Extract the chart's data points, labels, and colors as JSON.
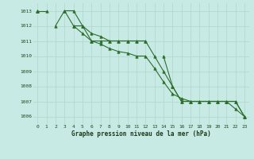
{
  "title": "Graphe pression niveau de la mer (hPa)",
  "bg_color": "#c8eae4",
  "grid_color": "#b0d4cc",
  "line_color": "#2d6e2d",
  "x": [
    0,
    1,
    2,
    3,
    4,
    5,
    6,
    7,
    8,
    9,
    10,
    11,
    12,
    13,
    14,
    15,
    16,
    17,
    18,
    19,
    20,
    21,
    22,
    23
  ],
  "line1": [
    1013.0,
    1013.0,
    null,
    1013.0,
    1013.0,
    1012.0,
    1011.0,
    1011.0,
    1011.0,
    1011.0,
    1011.0,
    1011.0,
    1011.0,
    null,
    1010.0,
    1008.0,
    1007.0,
    1007.0,
    1007.0,
    1007.0,
    1007.0,
    1007.0,
    1007.0,
    1006.0
  ],
  "line2": [
    1013.0,
    null,
    1012.0,
    1013.0,
    1012.0,
    1012.0,
    1011.5,
    1011.3,
    1011.0,
    1011.0,
    1011.0,
    1011.0,
    1011.0,
    1010.0,
    1009.0,
    1008.0,
    1007.0,
    1007.0,
    1007.0,
    1007.0,
    1007.0,
    1007.0,
    1007.0,
    1006.0
  ],
  "line3": [
    1013.0,
    null,
    null,
    null,
    1012.0,
    1011.5,
    1011.0,
    1010.8,
    1010.5,
    1010.3,
    1010.2,
    1010.0,
    1010.0,
    1009.2,
    1008.3,
    1007.5,
    1007.2,
    1007.0,
    1007.0,
    1007.0,
    1007.0,
    1007.0,
    1006.5,
    1006.0
  ],
  "ylim": [
    1005.5,
    1013.5
  ],
  "yticks": [
    1006,
    1007,
    1008,
    1009,
    1010,
    1011,
    1012,
    1013
  ],
  "xlim": [
    -0.5,
    23.5
  ],
  "xticks": [
    0,
    1,
    2,
    3,
    4,
    5,
    6,
    7,
    8,
    9,
    10,
    11,
    12,
    13,
    14,
    15,
    16,
    17,
    18,
    19,
    20,
    21,
    22,
    23
  ]
}
